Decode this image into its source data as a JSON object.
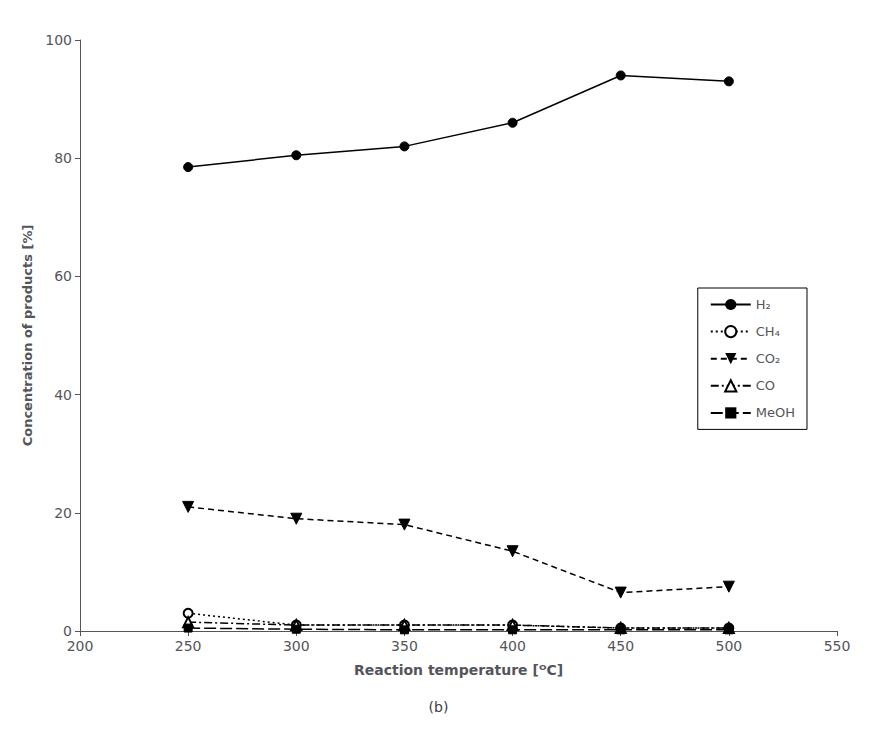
{
  "chart_data": {
    "type": "line",
    "subtitle": "(b)",
    "xlabel": "Reaction temperature [ᴼC]",
    "ylabel": "Concentration of products [%]",
    "x": [
      250,
      300,
      350,
      400,
      450,
      500
    ],
    "series": [
      {
        "name": "H₂",
        "color": "#000000",
        "marker": "circle",
        "line_style": "solid",
        "values": [
          78.5,
          80.5,
          82.0,
          86.0,
          94.0,
          93.0
        ]
      },
      {
        "name": "CH₄",
        "color": "#000000",
        "marker": "circle_open",
        "line_style": "dotted",
        "values": [
          3.0,
          1.0,
          1.0,
          1.0,
          0.5,
          0.5
        ]
      },
      {
        "name": "CO₂",
        "color": "#000000",
        "marker": "triangle_down",
        "line_style": "dashed",
        "values": [
          21.0,
          19.0,
          18.0,
          13.5,
          6.5,
          7.5
        ]
      },
      {
        "name": "CO",
        "color": "#000000",
        "marker": "triangle_open",
        "line_style": "dashdot",
        "values": [
          1.5,
          1.0,
          1.0,
          1.0,
          0.5,
          0.5
        ]
      },
      {
        "name": "MeOH",
        "color": "#000000",
        "marker": "square",
        "line_style": "longdash",
        "values": [
          0.5,
          0.3,
          0.2,
          0.2,
          0.2,
          0.2
        ]
      }
    ],
    "xlim": [
      200,
      550
    ],
    "ylim": [
      0,
      100
    ],
    "xticks": [
      200,
      250,
      300,
      350,
      400,
      450,
      500,
      550
    ],
    "yticks": [
      0,
      20,
      40,
      60,
      80,
      100
    ],
    "grid": false,
    "legend": "right"
  }
}
